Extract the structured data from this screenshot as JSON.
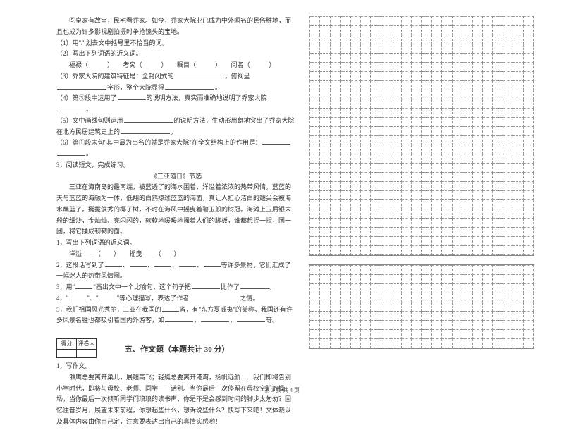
{
  "left": {
    "p1": "⑤皇家有故宫，民宅看乔家。如今，乔家大院业已成为中外闻名的民俗胜地，而且也成为许多影视剧拍摄时争抢镜头的宝地。",
    "q1_prefix": "（1）用\"/\"划去文中括号里不恰当的词。",
    "q2_prefix": "（2）写出下列词语的近义词。",
    "q2_line": "福禄（　　　）　　考究（　　　）　　瞩目（　　　）　　闻名（　　　）",
    "q3_part1": "（3）乔家大院的建筑特征是：全封闭式的",
    "q3_part2": "，俯视呈",
    "q3_part3": "字形，整个大院显得",
    "q3_part4": "。",
    "q4_part1": "（4）第③段中运用了",
    "q4_part2": "的说明方法，真实而准确地说明了乔家大院",
    "q4_part3": "。",
    "q5_part1": "（5）文中画线句则运用",
    "q5_part2": "的说明方法，生动形用象地突出了乔家大院在北方民居建筑史上的",
    "q5_part3": "。",
    "q6_part1": "（6）第①段末句\"其中最为出名的就是乔家大院\"在全文结构上的作用是：",
    "q6_part2": "。",
    "r3_title": "3，阅读短文，完成练习。",
    "r3_subtitle": "《三亚落日》节选",
    "r3_body": "三亚在海南岛的最南端，被蓝透了的海水围着，洋溢着浓浓的热带风情。蓝蓝的天与蓝蓝的海融为一体，低翔的白鸥掠过蓝蓝的海面，真让人担心洁白的翅尖会被海水蘸蓝了。挺拔俊秀的椰子树，不时在海风中摇曳着碧玉般的树冠。海滩上玉屑银末般的细沙，金灿灿、亮闪闪的，软软地暖暖地搔着人们的脚板，谁都想捏一捏，团一团，将它揉成韧韧的面。",
    "r3_q1": "1，写出下列词语的近义词。",
    "r3_q1_line": "洋溢——（　　）　　摇曳——（　　）",
    "r3_q2_a": "2，这段话写到了",
    "r3_q2_b": "、",
    "r3_q2_c": "、",
    "r3_q2_d": "、",
    "r3_q2_e": "、",
    "r3_q2_f": "等许多景物，它们汇成了一幅迷人的热带风情图。",
    "r3_q3_a": "3，用\"",
    "r3_q3_b": "\"画出文中一个比喻句，这个句子把",
    "r3_q3_c": "比作了",
    "r3_q3_d": "。",
    "r3_q4_a": "4，\"",
    "r3_q4_b": "\"、\"",
    "r3_q4_c": "\"等心理描写，表达了作者",
    "r3_q4_d": "之情。",
    "r3_q5_a": "5，我们祖国风光秀丽，三亚在我国的",
    "r3_q5_b": "省，有\"东方夏威夷\"的美称。我国还有许多风景名胜也都吸引着国内外游客，如",
    "r3_q5_c": "、",
    "r3_q5_d": "、",
    "r3_q5_e": "等。",
    "score_labels": [
      "得分",
      "评卷人"
    ],
    "section5_title": "五、作文题（本题共计 30 分）",
    "w1_title": "1，写作文。",
    "w1_body": "雏鹰总要离开巢儿，展翅高飞；轻艇总要离开港湾，扬帆远航……我们即将告别小学时代，即将与母校、老师、同学一一话别。当你最后一次停留在母校空旷的操场，当你最后一次倾听同学们琅琅的读书声，你是不是会感到时间的脚步太匆匆？回忆往昔岁月，展望未来前程，你想起些什么，想诉说些什么？快写下来吧！文体裁以及具体内容由你自己定，注意要表达出自己的真情实感哟！"
  },
  "grid": {
    "cols": 22,
    "block1_rows": 26,
    "block2_rows": 9,
    "border_color": "#888888",
    "cell_border_color": "#999999"
  },
  "footer": "第 3 页  共 4 页",
  "colors": {
    "text": "#333333",
    "bg": "#ffffff"
  }
}
